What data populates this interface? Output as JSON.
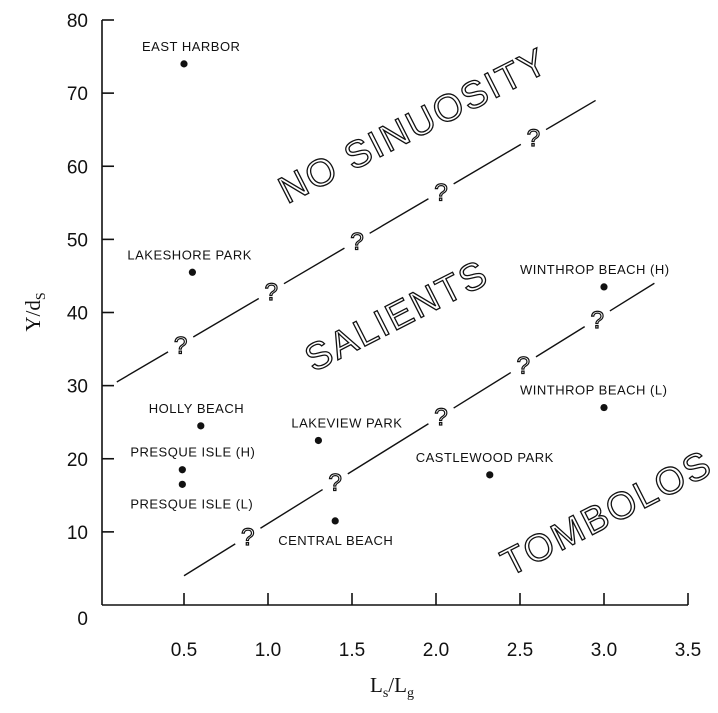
{
  "chart_data": {
    "type": "scatter",
    "x_label_main": "L",
    "x_label_sub1": "s",
    "x_label_slash": "/L",
    "x_label_sub2": "g",
    "y_label_main": "Y/d",
    "y_label_sub": "S",
    "xlim": [
      0,
      3.5
    ],
    "ylim": [
      0,
      80
    ],
    "x_ticks": [
      {
        "value": 0.5,
        "label": "0.5"
      },
      {
        "value": 1.0,
        "label": "1.0"
      },
      {
        "value": 1.5,
        "label": "1.5"
      },
      {
        "value": 2.0,
        "label": "2.0"
      },
      {
        "value": 2.5,
        "label": "2.5"
      },
      {
        "value": 3.0,
        "label": "3.0"
      },
      {
        "value": 3.5,
        "label": "3.5"
      }
    ],
    "y_ticks": [
      {
        "value": 0,
        "label": "0"
      },
      {
        "value": 10,
        "label": "10"
      },
      {
        "value": 20,
        "label": "20"
      },
      {
        "value": 30,
        "label": "30"
      },
      {
        "value": 40,
        "label": "40"
      },
      {
        "value": 50,
        "label": "50"
      },
      {
        "value": 60,
        "label": "60"
      },
      {
        "value": 70,
        "label": "70"
      },
      {
        "value": 80,
        "label": "80"
      }
    ],
    "points": [
      {
        "label": "EAST HARBOR",
        "x": 0.5,
        "y": 74,
        "label_pos": "above"
      },
      {
        "label": "LAKESHORE PARK",
        "x": 0.55,
        "y": 45.5,
        "label_pos": "above"
      },
      {
        "label": "HOLLY BEACH",
        "x": 0.6,
        "y": 24.5,
        "label_pos": "above"
      },
      {
        "label": "LAKEVIEW PARK",
        "x": 1.3,
        "y": 22.5,
        "label_pos": "above"
      },
      {
        "label": "PRESQUE ISLE (H)",
        "x": 0.49,
        "y": 18.5,
        "label_pos": "above"
      },
      {
        "label": "PRESQUE ISLE (L)",
        "x": 0.49,
        "y": 16.5,
        "label_pos": "below"
      },
      {
        "label": "CENTRAL BEACH",
        "x": 1.4,
        "y": 11.5,
        "label_pos": "below"
      },
      {
        "label": "CASTLEWOOD PARK",
        "x": 2.32,
        "y": 17.8,
        "label_pos": "above"
      },
      {
        "label": "WINTHROP BEACH (H)",
        "x": 3.0,
        "y": 43.5,
        "label_pos": "above"
      },
      {
        "label": "WINTHROP BEACH (L)",
        "x": 3.0,
        "y": 27,
        "label_pos": "above"
      }
    ],
    "boundaries": [
      {
        "name": "upper",
        "from": [
          0.1,
          30.5
        ],
        "to": [
          2.95,
          69
        ],
        "question_marks_at_x": [
          0.48,
          1.02,
          1.53,
          2.03,
          2.58
        ]
      },
      {
        "name": "lower",
        "from": [
          0.5,
          4
        ],
        "to": [
          3.3,
          44
        ],
        "question_marks_at_x": [
          0.88,
          1.4,
          2.03,
          2.52,
          2.96
        ]
      }
    ],
    "region_labels": [
      {
        "text": "NO SINUOSITY",
        "x": 1.9,
        "y": 64,
        "angle": -27
      },
      {
        "text": "SALIENTS",
        "x": 1.8,
        "y": 38,
        "angle": -27
      },
      {
        "text": "TOMBOLOS",
        "x": 3.05,
        "y": 11,
        "angle": -27
      }
    ],
    "question_mark_text": "?"
  }
}
